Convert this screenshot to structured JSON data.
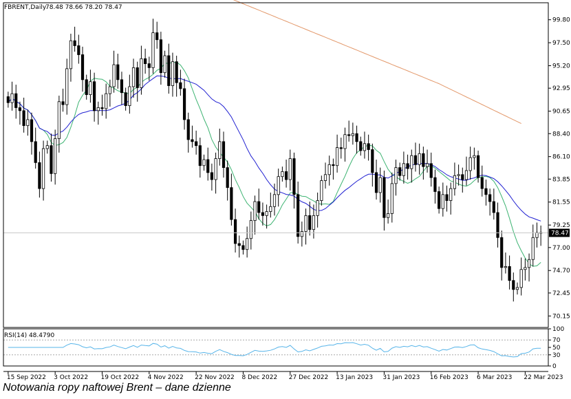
{
  "caption": "Notowania ropy naftowej Brent – dane dzienne",
  "chart_data": [
    {
      "type": "candlestick",
      "title": "FBRENT,Daily",
      "ohlc_label": "78.48 78.66 78.20 78.47",
      "last_price": "78.47",
      "ylim": [
        69.0,
        101.5
      ],
      "y_ticks": [
        "99.80",
        "97.50",
        "95.20",
        "92.95",
        "90.65",
        "88.40",
        "86.10",
        "83.85",
        "81.55",
        "79.25",
        "77.00",
        "74.70",
        "72.45",
        "70.15"
      ],
      "x_ticks": [
        "15 Sep 2022",
        "3 Oct 2022",
        "19 Oct 2022",
        "4 Nov 2022",
        "22 Nov 2022",
        "8 Dec 2022",
        "27 Dec 2022",
        "13 Jan 2023",
        "31 Jan 2023",
        "16 Feb 2023",
        "6 Mar 2023",
        "22 Mar 2023"
      ],
      "x_tick_index": [
        0,
        12,
        24,
        36,
        48,
        60,
        72,
        84,
        96,
        108,
        120,
        132
      ],
      "grid": false,
      "close": [
        91.5,
        92.4,
        91.0,
        90.7,
        89.2,
        89.8,
        87.6,
        85.5,
        82.9,
        86.9,
        87.2,
        84.4,
        87.9,
        91.6,
        91.3,
        94.9,
        97.7,
        97.2,
        96.3,
        93.8,
        92.3,
        93.6,
        90.7,
        91.0,
        90.9,
        92.4,
        93.1,
        95.3,
        93.8,
        92.5,
        91.2,
        93.1,
        95.0,
        93.0,
        95.9,
        95.4,
        95.0,
        98.5,
        97.8,
        94.5,
        96.2,
        93.2,
        95.6,
        93.5,
        92.9,
        89.8,
        87.8,
        87.6,
        87.2,
        85.2,
        85.8,
        84.5,
        83.8,
        85.9,
        87.6,
        85.0,
        83.0,
        79.8,
        77.4,
        77.2,
        76.8,
        77.9,
        79.7,
        81.6,
        80.5,
        80.2,
        80.6,
        81.1,
        82.3,
        84.1,
        84.6,
        83.8,
        85.9,
        82.3,
        78.1,
        78.6,
        80.2,
        78.8,
        80.2,
        81.7,
        83.7,
        84.3,
        85.3,
        85.2,
        87.0,
        86.9,
        88.3,
        88.2,
        88.4,
        87.6,
        86.7,
        87.4,
        86.8,
        84.5,
        82.5,
        84.0,
        80.0,
        80.4,
        83.4,
        85.0,
        84.2,
        85.4,
        84.9,
        86.2,
        85.3,
        86.4,
        85.1,
        85.4,
        84.0,
        82.6,
        80.9,
        82.3,
        81.7,
        82.9,
        84.2,
        84.3,
        83.8,
        84.7,
        86.0,
        86.2,
        84.0,
        82.9,
        82.3,
        81.6,
        80.5,
        78.0,
        75.0,
        75.1,
        73.7,
        72.8,
        73.0,
        74.8,
        75.0,
        75.8,
        78.0,
        78.5,
        78.47
      ]
    },
    {
      "type": "line",
      "title": "RSI(14) 48.4790",
      "ylim": [
        0,
        100
      ],
      "y_ticks": [
        "100",
        "70",
        "50",
        "30",
        "0"
      ]
    }
  ]
}
